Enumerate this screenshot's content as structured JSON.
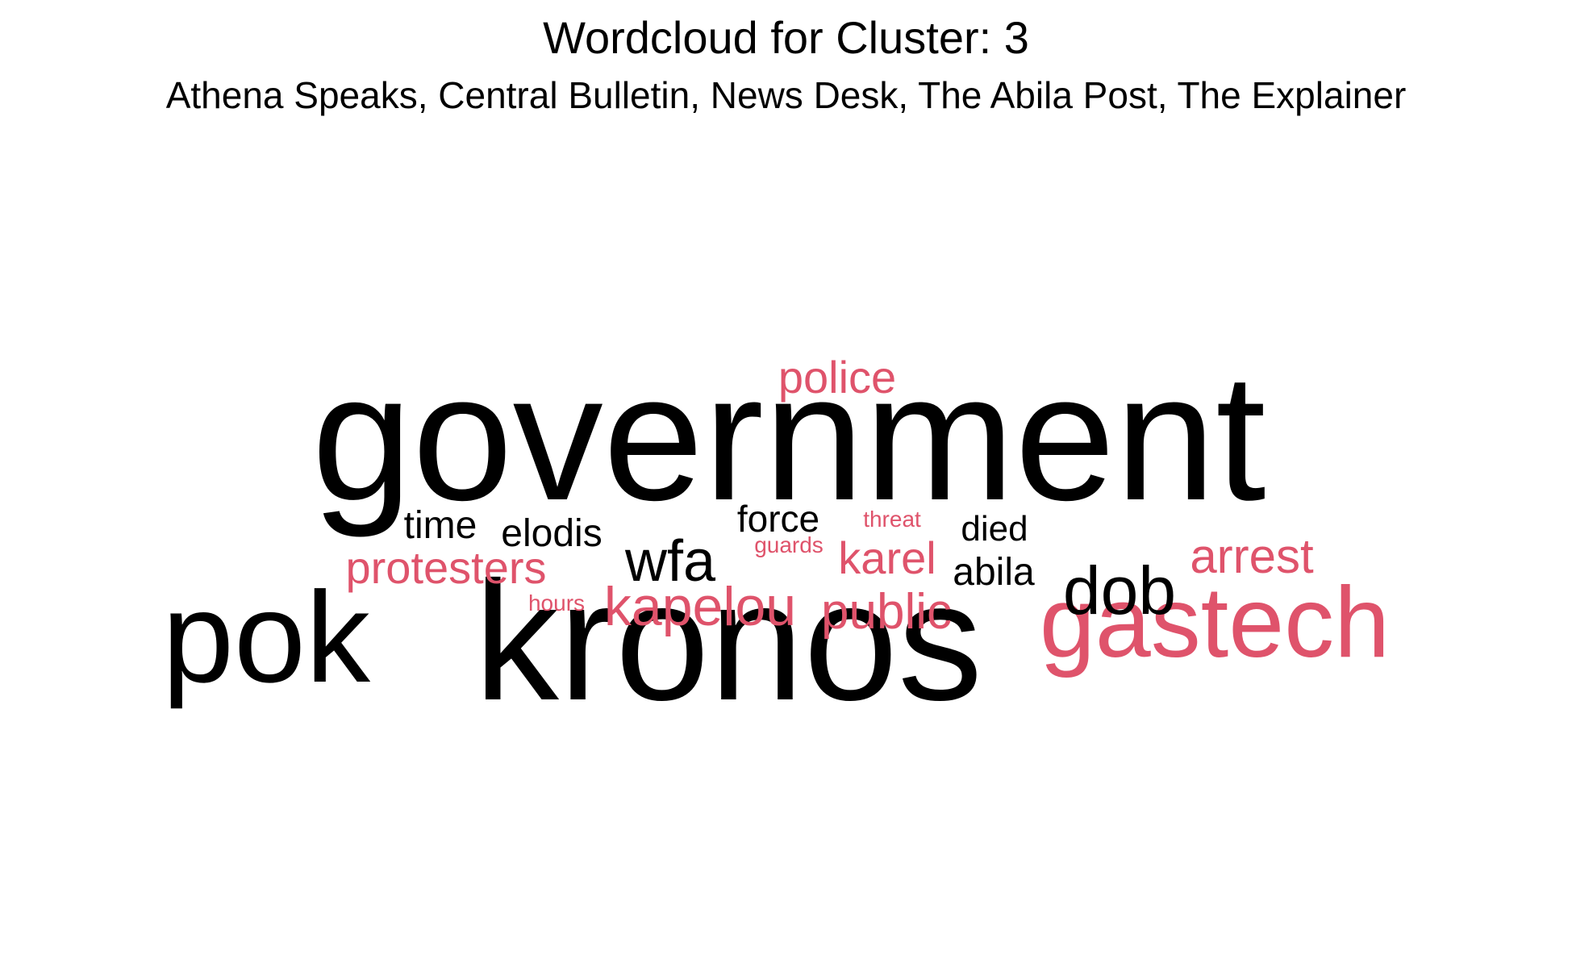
{
  "chart_data": {
    "type": "wordcloud",
    "title": "Wordcloud for Cluster:  3",
    "subtitle": "Athena Speaks, Central Bulletin, News Desk, The Abila Post, The Explainer",
    "colors": {
      "primary": "#000000",
      "secondary": "#df536b"
    },
    "words": [
      {
        "text": "government",
        "weight": 100,
        "color": "#000000"
      },
      {
        "text": "kronos",
        "weight": 92,
        "color": "#000000"
      },
      {
        "text": "pok",
        "weight": 70,
        "color": "#000000"
      },
      {
        "text": "gastech",
        "weight": 62,
        "color": "#df536b"
      },
      {
        "text": "dob",
        "weight": 42,
        "color": "#000000"
      },
      {
        "text": "wfa",
        "weight": 38,
        "color": "#000000"
      },
      {
        "text": "kapelou",
        "weight": 36,
        "color": "#df536b"
      },
      {
        "text": "public",
        "weight": 34,
        "color": "#df536b"
      },
      {
        "text": "arrest",
        "weight": 33,
        "color": "#df536b"
      },
      {
        "text": "karel",
        "weight": 30,
        "color": "#df536b"
      },
      {
        "text": "police",
        "weight": 30,
        "color": "#df536b"
      },
      {
        "text": "protesters",
        "weight": 30,
        "color": "#df536b"
      },
      {
        "text": "time",
        "weight": 27,
        "color": "#000000"
      },
      {
        "text": "abila",
        "weight": 26,
        "color": "#000000"
      },
      {
        "text": "elodis",
        "weight": 26,
        "color": "#000000"
      },
      {
        "text": "force",
        "weight": 25,
        "color": "#000000"
      },
      {
        "text": "died",
        "weight": 24,
        "color": "#000000"
      },
      {
        "text": "guards",
        "weight": 16,
        "color": "#df536b"
      },
      {
        "text": "threat",
        "weight": 15,
        "color": "#df536b"
      },
      {
        "text": "hours",
        "weight": 15,
        "color": "#df536b"
      }
    ]
  }
}
